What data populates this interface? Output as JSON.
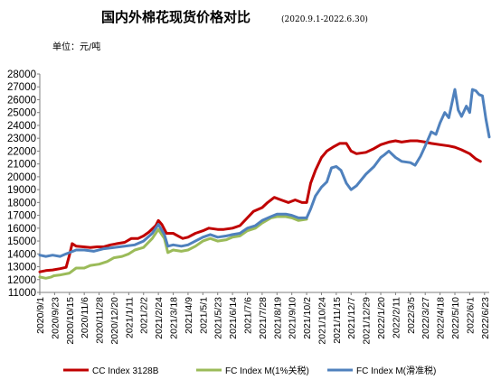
{
  "chart_data": {
    "type": "line",
    "title": "国内外棉花现货价格对比",
    "subtitle": "(2020.9.1-2022.6.30)",
    "unit_label": "单位：元/吨",
    "ylim": [
      11000,
      28000
    ],
    "yticks": [
      11000,
      12000,
      13000,
      14000,
      15000,
      16000,
      17000,
      18000,
      19000,
      20000,
      21000,
      22000,
      23000,
      24000,
      25000,
      26000,
      27000,
      28000
    ],
    "xlim": [
      "2020-09-01",
      "2022-06-30"
    ],
    "xticks": [
      "2020/9/1",
      "2020/9/23",
      "2020/10/15",
      "2020/11/6",
      "2020/11/28",
      "2020/12/20",
      "2021/1/11",
      "2021/2/2",
      "2021/2/24",
      "2021/3/18",
      "2021/4/9",
      "2021/5/1",
      "2021/5/23",
      "2021/6/14",
      "2021/7/6",
      "2021/7/28",
      "2021/8/19",
      "2021/9/10",
      "2021/10/2",
      "2021/10/24",
      "2021/11/15",
      "2021/12/7",
      "2021/12/29",
      "2022/1/20",
      "2022/2/11",
      "2022/3/5",
      "2022/3/27",
      "2022/4/18",
      "2022/5/10",
      "2022/6/1",
      "2022/6/23"
    ],
    "grid": false,
    "legend_position": "bottom",
    "series": [
      {
        "name": "CC Index 3128B",
        "color": "#c00000",
        "points": [
          [
            "2020-09-01",
            12600
          ],
          [
            "2020-09-10",
            12700
          ],
          [
            "2020-09-20",
            12750
          ],
          [
            "2020-10-01",
            12850
          ],
          [
            "2020-10-10",
            12950
          ],
          [
            "2020-10-15",
            13900
          ],
          [
            "2020-10-19",
            14800
          ],
          [
            "2020-10-25",
            14600
          ],
          [
            "2020-11-05",
            14550
          ],
          [
            "2020-11-15",
            14500
          ],
          [
            "2020-11-25",
            14550
          ],
          [
            "2020-12-05",
            14550
          ],
          [
            "2020-12-15",
            14700
          ],
          [
            "2020-12-25",
            14800
          ],
          [
            "2021-01-05",
            14900
          ],
          [
            "2021-01-15",
            15200
          ],
          [
            "2021-01-25",
            15200
          ],
          [
            "2021-02-02",
            15400
          ],
          [
            "2021-02-10",
            15700
          ],
          [
            "2021-02-20",
            16200
          ],
          [
            "2021-02-24",
            16600
          ],
          [
            "2021-03-01",
            16300
          ],
          [
            "2021-03-08",
            15600
          ],
          [
            "2021-03-18",
            15600
          ],
          [
            "2021-03-25",
            15400
          ],
          [
            "2021-04-01",
            15200
          ],
          [
            "2021-04-09",
            15300
          ],
          [
            "2021-04-20",
            15600
          ],
          [
            "2021-05-01",
            15800
          ],
          [
            "2021-05-10",
            16000
          ],
          [
            "2021-05-23",
            15900
          ],
          [
            "2021-06-01",
            15900
          ],
          [
            "2021-06-14",
            16000
          ],
          [
            "2021-06-25",
            16200
          ],
          [
            "2021-07-06",
            16800
          ],
          [
            "2021-07-15",
            17300
          ],
          [
            "2021-07-28",
            17600
          ],
          [
            "2021-08-05",
            18000
          ],
          [
            "2021-08-15",
            18400
          ],
          [
            "2021-08-25",
            18200
          ],
          [
            "2021-09-05",
            18000
          ],
          [
            "2021-09-15",
            18200
          ],
          [
            "2021-09-25",
            18000
          ],
          [
            "2021-10-02",
            18000
          ],
          [
            "2021-10-08",
            19500
          ],
          [
            "2021-10-15",
            20500
          ],
          [
            "2021-10-24",
            21500
          ],
          [
            "2021-11-01",
            22000
          ],
          [
            "2021-11-10",
            22300
          ],
          [
            "2021-11-20",
            22600
          ],
          [
            "2021-11-30",
            22600
          ],
          [
            "2021-12-07",
            22000
          ],
          [
            "2021-12-15",
            21800
          ],
          [
            "2021-12-29",
            21900
          ],
          [
            "2022-01-10",
            22200
          ],
          [
            "2022-01-20",
            22500
          ],
          [
            "2022-02-01",
            22700
          ],
          [
            "2022-02-11",
            22800
          ],
          [
            "2022-02-20",
            22700
          ],
          [
            "2022-03-05",
            22800
          ],
          [
            "2022-03-15",
            22800
          ],
          [
            "2022-03-27",
            22700
          ],
          [
            "2022-04-05",
            22600
          ],
          [
            "2022-04-18",
            22500
          ],
          [
            "2022-05-01",
            22400
          ],
          [
            "2022-05-10",
            22300
          ],
          [
            "2022-05-20",
            22100
          ],
          [
            "2022-06-01",
            21800
          ],
          [
            "2022-06-10",
            21400
          ],
          [
            "2022-06-17",
            21200
          ]
        ]
      },
      {
        "name": "FC Index M(1%关税)",
        "color": "#9bbb59",
        "points": [
          [
            "2020-09-01",
            12200
          ],
          [
            "2020-09-10",
            12100
          ],
          [
            "2020-09-18",
            12200
          ],
          [
            "2020-09-22",
            12300
          ],
          [
            "2020-09-30",
            12350
          ],
          [
            "2020-10-15",
            12500
          ],
          [
            "2020-10-25",
            12900
          ],
          [
            "2020-11-06",
            12900
          ],
          [
            "2020-11-15",
            13100
          ],
          [
            "2020-11-28",
            13200
          ],
          [
            "2020-12-10",
            13400
          ],
          [
            "2020-12-20",
            13700
          ],
          [
            "2021-01-01",
            13800
          ],
          [
            "2021-01-11",
            14000
          ],
          [
            "2021-01-20",
            14300
          ],
          [
            "2021-02-02",
            14500
          ],
          [
            "2021-02-15",
            15200
          ],
          [
            "2021-02-24",
            15900
          ],
          [
            "2021-03-05",
            15200
          ],
          [
            "2021-03-10",
            14100
          ],
          [
            "2021-03-18",
            14300
          ],
          [
            "2021-03-30",
            14200
          ],
          [
            "2021-04-09",
            14300
          ],
          [
            "2021-04-20",
            14600
          ],
          [
            "2021-05-01",
            15000
          ],
          [
            "2021-05-12",
            15200
          ],
          [
            "2021-05-23",
            15000
          ],
          [
            "2021-06-05",
            15100
          ],
          [
            "2021-06-14",
            15300
          ],
          [
            "2021-06-25",
            15400
          ],
          [
            "2021-07-06",
            15800
          ],
          [
            "2021-07-18",
            16000
          ],
          [
            "2021-07-28",
            16400
          ],
          [
            "2021-08-10",
            16800
          ],
          [
            "2021-08-19",
            16900
          ],
          [
            "2021-09-01",
            16900
          ],
          [
            "2021-09-10",
            16800
          ],
          [
            "2021-09-20",
            16600
          ],
          [
            "2021-10-02",
            16700
          ]
        ]
      },
      {
        "name": "FC Index M(滑准税)",
        "color": "#4f81bd",
        "points": [
          [
            "2020-09-01",
            13900
          ],
          [
            "2020-09-10",
            13800
          ],
          [
            "2020-09-20",
            13900
          ],
          [
            "2020-10-01",
            13800
          ],
          [
            "2020-10-10",
            14000
          ],
          [
            "2020-10-15",
            14100
          ],
          [
            "2020-10-25",
            14300
          ],
          [
            "2020-11-06",
            14300
          ],
          [
            "2020-11-20",
            14200
          ],
          [
            "2020-12-05",
            14400
          ],
          [
            "2020-12-20",
            14500
          ],
          [
            "2021-01-05",
            14600
          ],
          [
            "2021-01-20",
            14700
          ],
          [
            "2021-02-02",
            15000
          ],
          [
            "2021-02-15",
            15600
          ],
          [
            "2021-02-24",
            16300
          ],
          [
            "2021-03-05",
            15500
          ],
          [
            "2021-03-10",
            14600
          ],
          [
            "2021-03-18",
            14700
          ],
          [
            "2021-03-30",
            14600
          ],
          [
            "2021-04-09",
            14700
          ],
          [
            "2021-04-20",
            15000
          ],
          [
            "2021-05-01",
            15300
          ],
          [
            "2021-05-12",
            15500
          ],
          [
            "2021-05-23",
            15300
          ],
          [
            "2021-06-05",
            15400
          ],
          [
            "2021-06-14",
            15500
          ],
          [
            "2021-06-25",
            15600
          ],
          [
            "2021-07-06",
            16000
          ],
          [
            "2021-07-18",
            16200
          ],
          [
            "2021-07-28",
            16600
          ],
          [
            "2021-08-10",
            16900
          ],
          [
            "2021-08-19",
            17100
          ],
          [
            "2021-09-01",
            17100
          ],
          [
            "2021-09-10",
            17000
          ],
          [
            "2021-09-20",
            16800
          ],
          [
            "2021-10-02",
            16800
          ],
          [
            "2021-10-08",
            17500
          ],
          [
            "2021-10-15",
            18500
          ],
          [
            "2021-10-24",
            19200
          ],
          [
            "2021-11-01",
            19600
          ],
          [
            "2021-11-08",
            20700
          ],
          [
            "2021-11-15",
            20800
          ],
          [
            "2021-11-22",
            20500
          ],
          [
            "2021-11-30",
            19500
          ],
          [
            "2021-12-07",
            19000
          ],
          [
            "2021-12-15",
            19300
          ],
          [
            "2021-12-29",
            20200
          ],
          [
            "2022-01-10",
            20800
          ],
          [
            "2022-01-20",
            21500
          ],
          [
            "2022-01-25",
            21700
          ],
          [
            "2022-02-01",
            22000
          ],
          [
            "2022-02-11",
            21500
          ],
          [
            "2022-02-20",
            21200
          ],
          [
            "2022-03-05",
            21100
          ],
          [
            "2022-03-12",
            20900
          ],
          [
            "2022-03-20",
            21600
          ],
          [
            "2022-03-27",
            22400
          ],
          [
            "2022-04-05",
            23500
          ],
          [
            "2022-04-12",
            23300
          ],
          [
            "2022-04-18",
            24200
          ],
          [
            "2022-04-25",
            25000
          ],
          [
            "2022-05-01",
            24600
          ],
          [
            "2022-05-10",
            26800
          ],
          [
            "2022-05-15",
            25200
          ],
          [
            "2022-05-20",
            24700
          ],
          [
            "2022-05-27",
            25500
          ],
          [
            "2022-06-01",
            25000
          ],
          [
            "2022-06-05",
            26800
          ],
          [
            "2022-06-10",
            26700
          ],
          [
            "2022-06-15",
            26400
          ],
          [
            "2022-06-20",
            26300
          ],
          [
            "2022-06-25",
            24500
          ],
          [
            "2022-06-30",
            23100
          ]
        ]
      }
    ]
  }
}
